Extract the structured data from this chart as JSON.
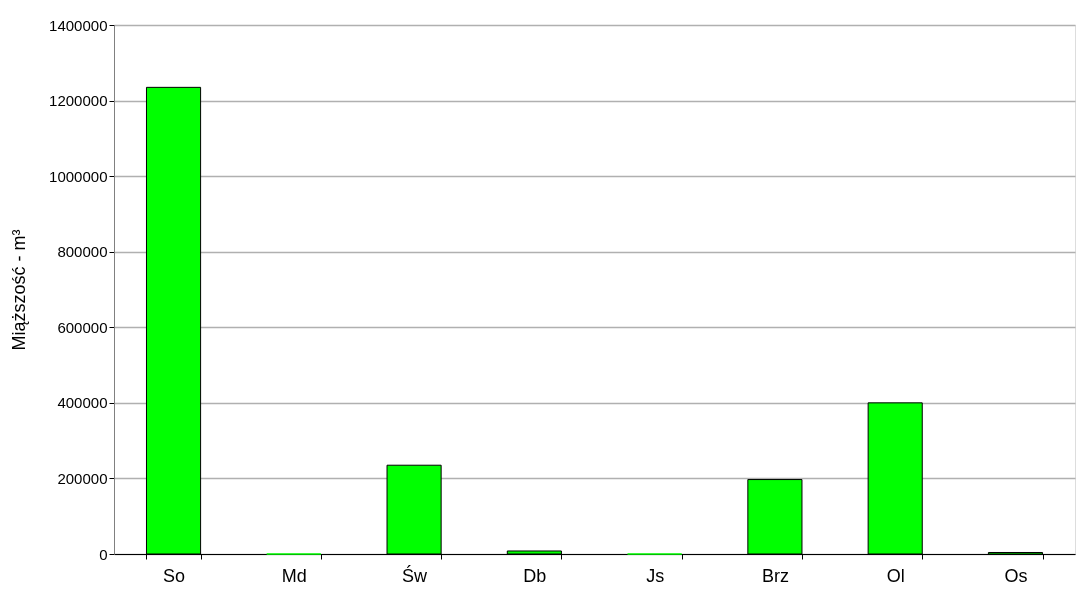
{
  "chart_data": {
    "type": "bar",
    "ylabel": "Miąższość - m³",
    "categories": [
      "So",
      "Md",
      "Św",
      "Db",
      "Js",
      "Brz",
      "Ol",
      "Os"
    ],
    "values": [
      1235000,
      0,
      235000,
      8000,
      0,
      197000,
      400000,
      4000
    ],
    "color": "#00ff00",
    "ylim": [
      0,
      1400000
    ],
    "yticks": [
      0,
      200000,
      400000,
      600000,
      800000,
      1000000,
      1200000,
      1400000
    ],
    "grid": "y"
  }
}
